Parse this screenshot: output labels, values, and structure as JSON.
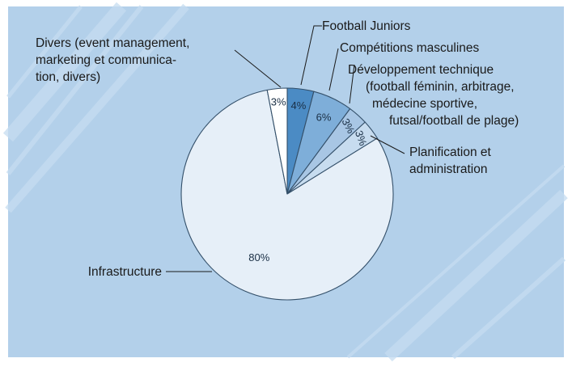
{
  "chart_data": {
    "type": "pie",
    "title": "",
    "slices": [
      {
        "label": "Football Juniors",
        "label_lines": [
          "Football Juniors"
        ],
        "value": 4,
        "pct_text": "4%",
        "color": "#4b8bc4"
      },
      {
        "label": "Compétitions masculines",
        "label_lines": [
          "Compétitions masculines"
        ],
        "value": 6,
        "pct_text": "6%",
        "color": "#7eaed9"
      },
      {
        "label": "Développement technique (football féminin, arbitrage, médecine sportive, futsal/football de plage)",
        "label_lines": [
          "Développement technique",
          "(football féminin, arbitrage,",
          "médecine sportive,",
          "futsal/football de plage)"
        ],
        "value": 3,
        "pct_text": "3%",
        "color": "#a8c6e4"
      },
      {
        "label": "Planification et administration",
        "label_lines": [
          "Planification et",
          "administration"
        ],
        "value": 3,
        "pct_text": "3%",
        "color": "#c7dcef"
      },
      {
        "label": "Infrastructure",
        "label_lines": [
          "Infrastructure"
        ],
        "value": 80,
        "pct_text": "80%",
        "color": "#e6eff8"
      },
      {
        "label": "Divers (event management, marketing et communication, divers)",
        "label_lines": [
          "Divers (event management,",
          "marketing et communica-",
          "tion, divers)"
        ],
        "value": 3,
        "pct_text": "3%",
        "color": "#ffffff"
      }
    ],
    "start": "12 o'clock",
    "direction": "clockwise",
    "legend": "none (callout labels)",
    "colors": {
      "background": "#b3d0ea",
      "stripes": "#c6dcf0",
      "border": "#34506a"
    }
  }
}
